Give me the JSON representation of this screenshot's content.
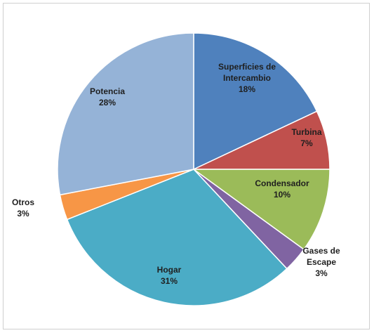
{
  "chart_data": {
    "type": "pie",
    "slices": [
      {
        "label": "Superficies de Intercambio",
        "label_lines": [
          "Superficies de",
          "Intercambio"
        ],
        "value": 18,
        "value_label": "18%",
        "color": "#4f81bd",
        "label_inside": true
      },
      {
        "label": "Turbina",
        "label_lines": [
          "Turbina"
        ],
        "value": 7,
        "value_label": "7%",
        "color": "#c0504d",
        "label_inside": true
      },
      {
        "label": "Condensador",
        "label_lines": [
          "Condensador"
        ],
        "value": 10,
        "value_label": "10%",
        "color": "#9bbb59",
        "label_inside": true
      },
      {
        "label": "Gases de Escape",
        "label_lines": [
          "Gases de",
          "Escape"
        ],
        "value": 3,
        "value_label": "3%",
        "color": "#8064a2",
        "label_inside": false
      },
      {
        "label": "Hogar",
        "label_lines": [
          "Hogar"
        ],
        "value": 31,
        "value_label": "31%",
        "color": "#4bacc6",
        "label_inside": true
      },
      {
        "label": "Otros",
        "label_lines": [
          "Otros"
        ],
        "value": 3,
        "value_label": "3%",
        "color": "#f79646",
        "label_inside": false
      },
      {
        "label": "Potencia",
        "label_lines": [
          "Potencia"
        ],
        "value": 28,
        "value_label": "28%",
        "color": "#95b3d7",
        "label_inside": true
      }
    ],
    "start_angle": "12 o'clock",
    "direction": "clockwise",
    "legend": "none",
    "title": ""
  }
}
